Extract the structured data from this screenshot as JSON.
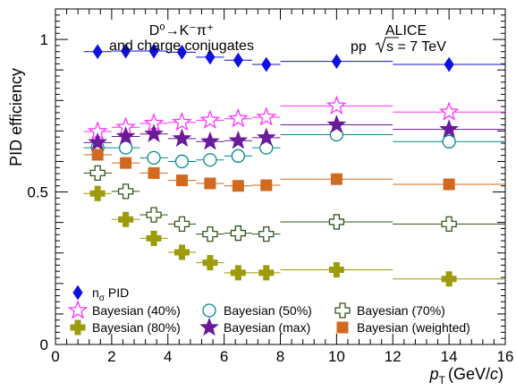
{
  "chart_data": {
    "type": "scatter",
    "xlabel": "p_T (GeV/c)",
    "xlabel_main": "p",
    "xlabel_sub": "T",
    "xlabel_units_pre": "(GeV/",
    "xlabel_units_c": "c",
    "xlabel_units_post": ")",
    "ylabel": "PID efficiency",
    "xlim": [
      0,
      16
    ],
    "ylim": [
      0,
      1.1
    ],
    "x_ticks": [
      0,
      2,
      4,
      6,
      8,
      10,
      12,
      14,
      16
    ],
    "x_tick_labels": [
      "0",
      "2",
      "4",
      "6",
      "8",
      "10",
      "12",
      "14",
      "16"
    ],
    "y_ticks": [
      0,
      0.5,
      1
    ],
    "y_tick_labels": [
      "0",
      "0.5",
      "1"
    ],
    "annotations": {
      "process_line1": "D⁰→K⁻π⁺",
      "process_line2": "and charge conjugates",
      "experiment": "ALICE",
      "collision_prefix": "pp",
      "collision_energy": "s = 7 TeV"
    },
    "x_bins": [
      [
        1,
        2
      ],
      [
        2,
        3
      ],
      [
        3,
        4
      ],
      [
        4,
        5
      ],
      [
        5,
        6
      ],
      [
        6,
        7
      ],
      [
        7,
        8
      ],
      [
        8,
        12
      ],
      [
        12,
        16
      ]
    ],
    "x_centers": [
      1.5,
      2.5,
      3.5,
      4.5,
      5.5,
      6.5,
      7.5,
      10,
      14
    ],
    "series": [
      {
        "name": "n_σ PID",
        "label_main": "n",
        "label_sub": "σ",
        "label_rest": " PID",
        "marker": "diamond",
        "color": "#1010e0",
        "fill": true,
        "values": [
          0.96,
          0.962,
          0.962,
          0.958,
          0.942,
          0.932,
          0.918,
          0.928,
          0.918
        ]
      },
      {
        "name": "Bayesian (40%)",
        "marker": "star",
        "color": "#ff33ff",
        "fill": false,
        "values": [
          0.698,
          0.712,
          0.725,
          0.728,
          0.735,
          0.74,
          0.745,
          0.782,
          0.762
        ]
      },
      {
        "name": "Bayesian (50%)",
        "marker": "circle",
        "color": "#008b8b",
        "fill": false,
        "values": [
          0.645,
          0.645,
          0.612,
          0.6,
          0.605,
          0.618,
          0.645,
          0.688,
          0.665
        ]
      },
      {
        "name": "Bayesian (70%)",
        "marker": "cross",
        "color": "#335518",
        "fill": false,
        "values": [
          0.562,
          0.502,
          0.425,
          0.395,
          0.362,
          0.365,
          0.362,
          0.402,
          0.395
        ]
      },
      {
        "name": "Bayesian (80%)",
        "marker": "cross",
        "color": "#9b9b0b",
        "fill": true,
        "values": [
          0.495,
          0.41,
          0.348,
          0.302,
          0.268,
          0.235,
          0.235,
          0.245,
          0.215
        ]
      },
      {
        "name": "Bayesian (max)",
        "marker": "star",
        "color": "#6a1b9a",
        "fill": true,
        "values": [
          0.662,
          0.682,
          0.69,
          0.675,
          0.665,
          0.668,
          0.678,
          0.72,
          0.705
        ]
      },
      {
        "name": "Bayesian (weighted)",
        "marker": "square",
        "color": "#d2691e",
        "fill": true,
        "values": [
          0.622,
          0.595,
          0.562,
          0.538,
          0.528,
          0.52,
          0.522,
          0.542,
          0.525
        ]
      }
    ],
    "legend_rows": [
      [
        0
      ],
      [
        1,
        2,
        3
      ],
      [
        4,
        5,
        6
      ]
    ],
    "legend_position": "bottom-left"
  }
}
